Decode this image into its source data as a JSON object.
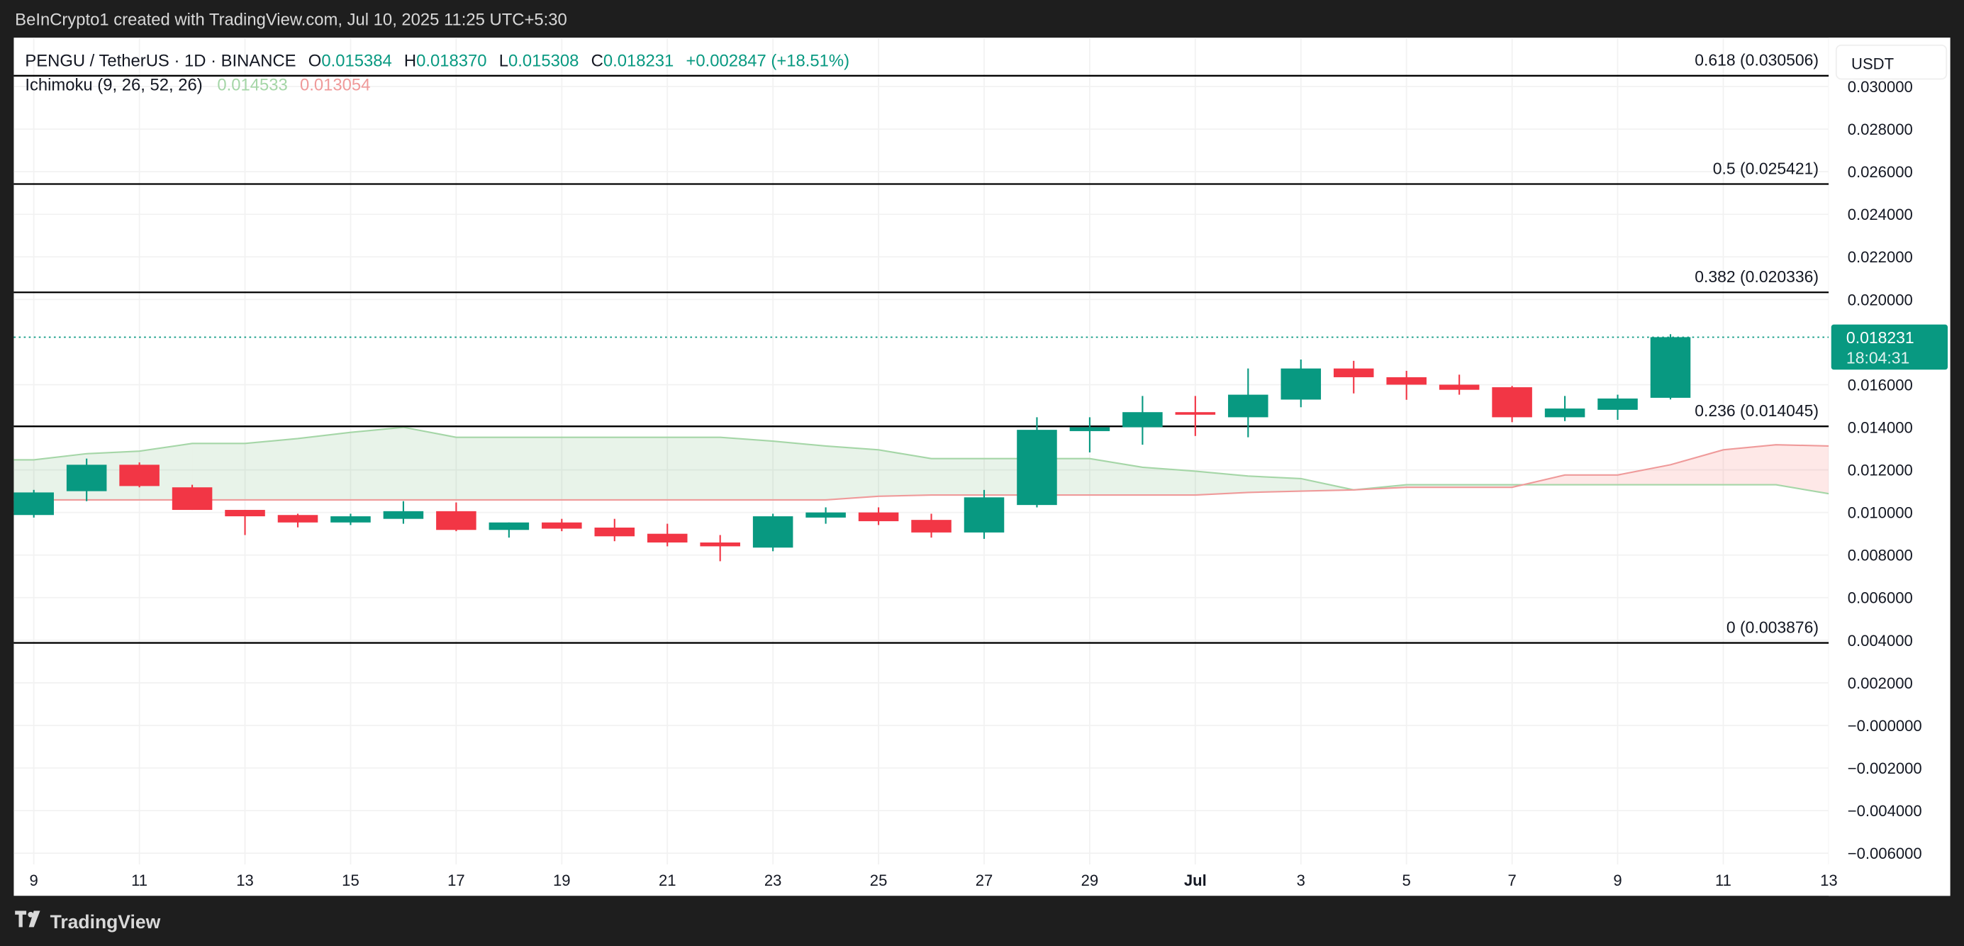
{
  "header": {
    "credit": "BeInCrypto1 created with TradingView.com, Jul 10, 2025 11:25 UTC+5:30"
  },
  "legend": {
    "symbol": "PENGU / TetherUS · 1D · BINANCE",
    "o_label": "O",
    "o": "0.015384",
    "h_label": "H",
    "h": "0.018370",
    "l_label": "L",
    "l": "0.015308",
    "c_label": "C",
    "c": "0.018231",
    "change": "+0.002847 (+18.51%)",
    "indicator": "Ichimoku (9, 26, 52, 26)",
    "span_a_value": "0.014533",
    "span_b_value": "0.013054"
  },
  "price_axis": {
    "currency": "USDT",
    "ticks": [
      "0.030000",
      "0.028000",
      "0.026000",
      "0.024000",
      "0.022000",
      "0.020000",
      "0.016000",
      "0.014000",
      "0.012000",
      "0.010000",
      "0.008000",
      "0.006000",
      "0.004000",
      "0.002000",
      "−0.000000",
      "−0.002000",
      "−0.004000",
      "−0.006000"
    ],
    "last_price": "0.018231",
    "countdown": "18:04:31"
  },
  "footer": {
    "brand": "TradingView"
  },
  "colors": {
    "up": "#089981",
    "down": "#f23645",
    "span_a": "#a5d6a7",
    "span_b": "#ef9a9a",
    "fib": "#000000"
  },
  "chart_data": {
    "type": "candlestick",
    "ylim": [
      -0.006,
      0.031
    ],
    "x_tick_labels": [
      "9",
      "11",
      "13",
      "15",
      "17",
      "19",
      "21",
      "23",
      "25",
      "27",
      "29",
      "Jul",
      "3",
      "5",
      "7",
      "9",
      "11",
      "13"
    ],
    "dates": [
      "Jun 9",
      "Jun 10",
      "Jun 11",
      "Jun 12",
      "Jun 13",
      "Jun 14",
      "Jun 15",
      "Jun 16",
      "Jun 17",
      "Jun 18",
      "Jun 19",
      "Jun 20",
      "Jun 21",
      "Jun 22",
      "Jun 23",
      "Jun 24",
      "Jun 25",
      "Jun 26",
      "Jun 27",
      "Jun 28",
      "Jun 29",
      "Jun 30",
      "Jul 1",
      "Jul 2",
      "Jul 3",
      "Jul 4",
      "Jul 5",
      "Jul 6",
      "Jul 7",
      "Jul 8",
      "Jul 9",
      "Jul 10"
    ],
    "ohlc": [
      [
        0.00988,
        0.01106,
        0.00976,
        0.01094
      ],
      [
        0.011,
        0.01253,
        0.01053,
        0.01224
      ],
      [
        0.01224,
        0.01235,
        0.01118,
        0.01124
      ],
      [
        0.01118,
        0.0113,
        0.01012,
        0.01012
      ],
      [
        0.01012,
        0.01012,
        0.00894,
        0.00982
      ],
      [
        0.00988,
        0.00994,
        0.0093,
        0.00953
      ],
      [
        0.00953,
        0.00994,
        0.00941,
        0.00982
      ],
      [
        0.0097,
        0.01053,
        0.00947,
        0.01006
      ],
      [
        0.01006,
        0.01047,
        0.00912,
        0.00918
      ],
      [
        0.00918,
        0.00953,
        0.00882,
        0.00953
      ],
      [
        0.00953,
        0.0097,
        0.00912,
        0.00924
      ],
      [
        0.00929,
        0.0097,
        0.00865,
        0.00888
      ],
      [
        0.009,
        0.00947,
        0.00841,
        0.00859
      ],
      [
        0.00859,
        0.00894,
        0.00771,
        0.00841
      ],
      [
        0.00835,
        0.00994,
        0.00818,
        0.00982
      ],
      [
        0.00976,
        0.01024,
        0.00947,
        0.01
      ],
      [
        0.01,
        0.01024,
        0.00941,
        0.00959
      ],
      [
        0.00965,
        0.00994,
        0.00882,
        0.00906
      ],
      [
        0.00906,
        0.01106,
        0.00876,
        0.01071
      ],
      [
        0.01035,
        0.01447,
        0.01024,
        0.01388
      ],
      [
        0.01382,
        0.01447,
        0.01282,
        0.014
      ],
      [
        0.014,
        0.01547,
        0.01318,
        0.01471
      ],
      [
        0.01471,
        0.01547,
        0.01359,
        0.01459
      ],
      [
        0.01447,
        0.01676,
        0.01353,
        0.01553
      ],
      [
        0.0153,
        0.01718,
        0.01494,
        0.01676
      ],
      [
        0.01676,
        0.01712,
        0.01559,
        0.01635
      ],
      [
        0.01635,
        0.01665,
        0.01529,
        0.016
      ],
      [
        0.016,
        0.01647,
        0.01553,
        0.01576
      ],
      [
        0.01588,
        0.01594,
        0.01424,
        0.01447
      ],
      [
        0.01447,
        0.01547,
        0.01429,
        0.01488
      ],
      [
        0.01482,
        0.01553,
        0.01435,
        0.01535
      ],
      [
        0.015384,
        0.01837,
        0.015308,
        0.018231
      ]
    ],
    "ichimoku": {
      "dates_from": "Jun 9",
      "dates_to": "Jul 13",
      "span_a": [
        0.01247,
        0.01276,
        0.01288,
        0.01324,
        0.01324,
        0.01347,
        0.01376,
        0.014,
        0.01353,
        0.01353,
        0.01353,
        0.01353,
        0.01353,
        0.01353,
        0.01335,
        0.01312,
        0.01294,
        0.01253,
        0.01253,
        0.01253,
        0.01253,
        0.01212,
        0.01194,
        0.01171,
        0.01159,
        0.01106,
        0.0113,
        0.0113,
        0.0113,
        0.0113,
        0.0113,
        0.0113,
        0.0113,
        0.0113,
        0.01088
      ],
      "span_b": [
        0.01059,
        0.01059,
        0.01059,
        0.01059,
        0.01059,
        0.01059,
        0.01059,
        0.01059,
        0.01059,
        0.01059,
        0.01059,
        0.01059,
        0.01059,
        0.01059,
        0.01059,
        0.01059,
        0.01076,
        0.01082,
        0.01082,
        0.01082,
        0.01082,
        0.01082,
        0.01082,
        0.01094,
        0.011,
        0.01106,
        0.01118,
        0.01118,
        0.01118,
        0.01176,
        0.01176,
        0.01224,
        0.01294,
        0.01318,
        0.01312
      ]
    },
    "fib_levels": [
      {
        "label": "0.618 (0.030506)",
        "value": 0.030506
      },
      {
        "label": "0.5 (0.025421)",
        "value": 0.025421
      },
      {
        "label": "0.382 (0.020336)",
        "value": 0.020336
      },
      {
        "label": "0.236 (0.014045)",
        "value": 0.014045
      },
      {
        "label": "0 (0.003876)",
        "value": 0.003876
      }
    ],
    "last_price": 0.018231
  }
}
